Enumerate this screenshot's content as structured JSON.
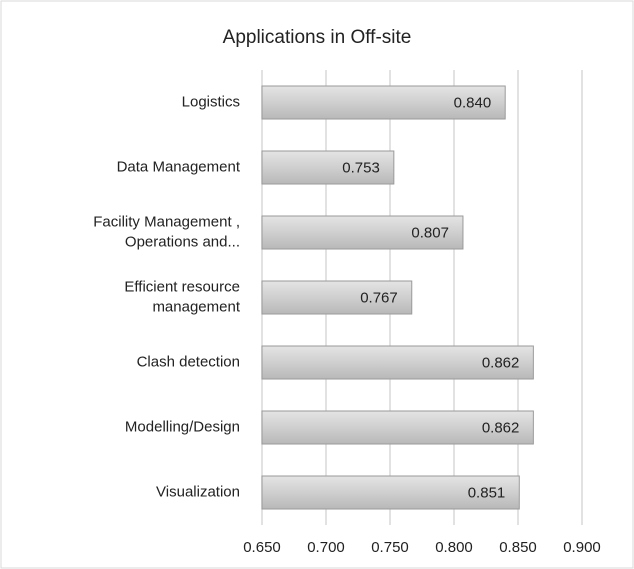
{
  "chart_data": {
    "type": "bar",
    "orientation": "horizontal",
    "title": "Applications  in Off-site",
    "categories": [
      "Logistics",
      "Data Management",
      "Facility Management ,\nOperations and...",
      "Efficient resource\nmanagement",
      "Clash detection",
      "Modelling/Design",
      "Visualization"
    ],
    "values": [
      0.84,
      0.753,
      0.807,
      0.767,
      0.862,
      0.862,
      0.851
    ],
    "value_labels": [
      "0.840",
      "0.753",
      "0.807",
      "0.767",
      "0.862",
      "0.862",
      "0.851"
    ],
    "color": "#c8c8c8",
    "xlim": [
      0.65,
      0.9
    ],
    "xticks": [
      {
        "value": 0.65,
        "label": "0.650"
      },
      {
        "value": 0.7,
        "label": "0.700"
      },
      {
        "value": 0.75,
        "label": "0.750"
      },
      {
        "value": 0.8,
        "label": "0.800"
      },
      {
        "value": 0.85,
        "label": "0.850"
      },
      {
        "value": 0.9,
        "label": "0.900"
      }
    ],
    "grid": true
  }
}
